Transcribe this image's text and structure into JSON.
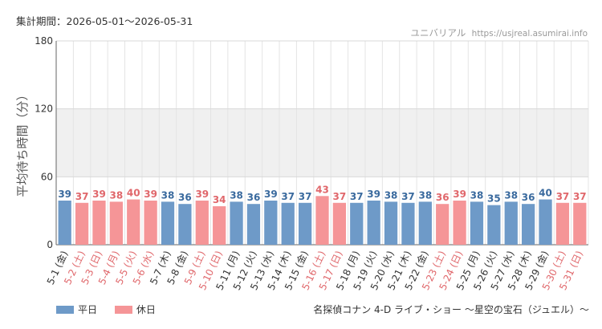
{
  "period_label": "集計期間：2026-05-01～2026-05-31",
  "watermark": {
    "brand": "ユニバリアル",
    "url": "https://usjreal.asumirai.info"
  },
  "attraction": "名探偵コナン 4-D ライブ・ショー ～星空の宝石（ジュエル）～",
  "legend": [
    {
      "label": "平日",
      "color": "#6e9ac8"
    },
    {
      "label": "休日",
      "color": "#f59597"
    }
  ],
  "colors": {
    "weekday_bar": "#6e9ac8",
    "holiday_bar": "#f59597",
    "weekday_text": "#3a6a9e",
    "holiday_text": "#e0676b",
    "band": "#f0f0f0",
    "grid": "#e4e4e4"
  },
  "chart_data": {
    "type": "bar",
    "ylabel": "平均待ち時間（分）",
    "ylim": [
      0,
      180
    ],
    "yticks": [
      0,
      60,
      120,
      180
    ],
    "shaded_band": [
      60,
      120
    ],
    "categories": [
      "5-1 (金)",
      "5-2 (土)",
      "5-3 (日)",
      "5-4 (月)",
      "5-5 (火)",
      "5-6 (水)",
      "5-7 (木)",
      "5-8 (金)",
      "5-9 (土)",
      "5-10 (日)",
      "5-11 (月)",
      "5-12 (火)",
      "5-13 (水)",
      "5-14 (木)",
      "5-15 (金)",
      "5-16 (土)",
      "5-17 (日)",
      "5-18 (月)",
      "5-19 (火)",
      "5-20 (水)",
      "5-21 (木)",
      "5-22 (金)",
      "5-23 (土)",
      "5-24 (日)",
      "5-25 (月)",
      "5-26 (火)",
      "5-27 (水)",
      "5-28 (木)",
      "5-29 (金)",
      "5-30 (土)",
      "5-31 (日)"
    ],
    "values": [
      39,
      37,
      39,
      38,
      40,
      39,
      38,
      36,
      39,
      34,
      38,
      36,
      39,
      37,
      37,
      43,
      37,
      37,
      39,
      38,
      37,
      38,
      36,
      39,
      38,
      35,
      38,
      36,
      40,
      37,
      37
    ],
    "holiday": [
      false,
      true,
      true,
      true,
      true,
      true,
      false,
      false,
      true,
      true,
      false,
      false,
      false,
      false,
      false,
      true,
      true,
      false,
      false,
      false,
      false,
      false,
      true,
      true,
      false,
      false,
      false,
      false,
      false,
      true,
      true
    ]
  }
}
